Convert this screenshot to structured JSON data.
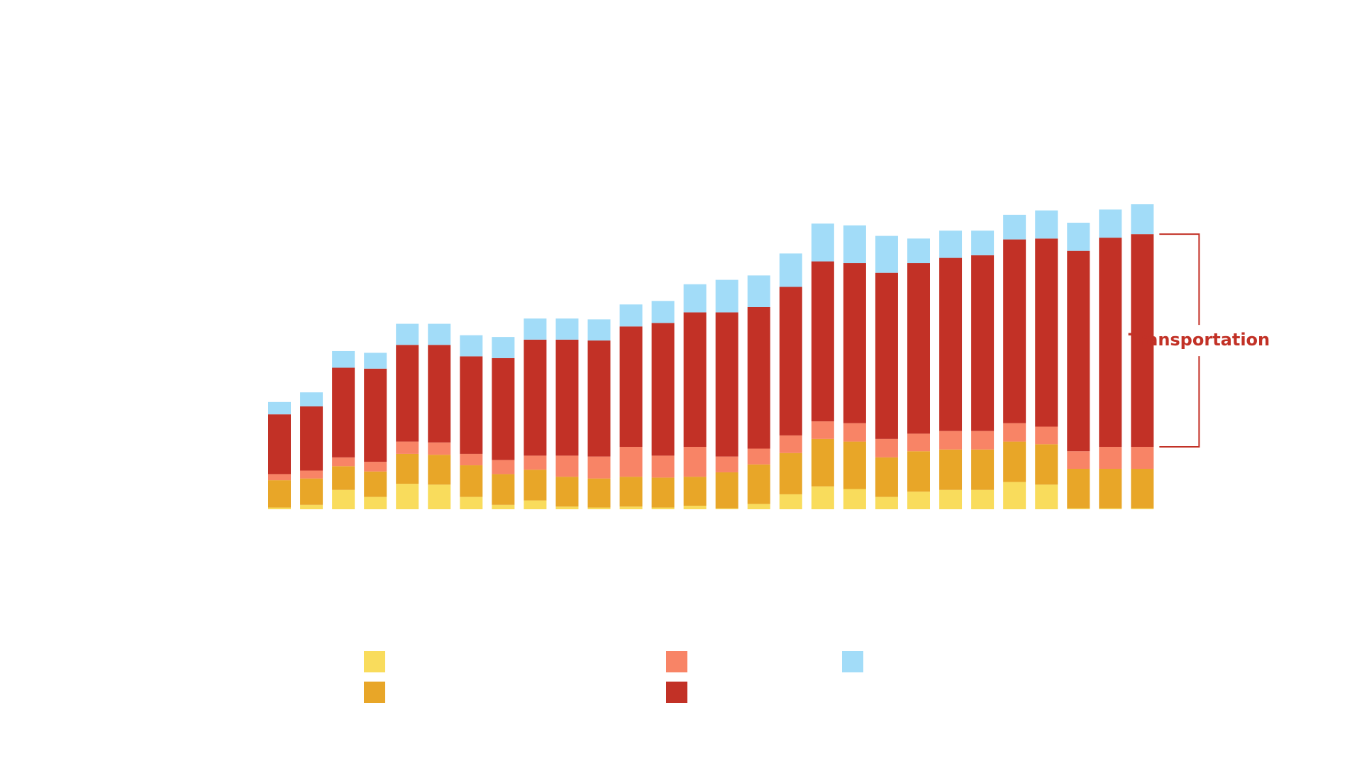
{
  "chart_data": {
    "type": "stacked_bar",
    "annotation": "Transportation",
    "categories": [
      null,
      null,
      null,
      null,
      null,
      null,
      null,
      null,
      null,
      null,
      null,
      null,
      null,
      null,
      null,
      null,
      null,
      null,
      null,
      null,
      null,
      null,
      null,
      null,
      null,
      null,
      null,
      null
    ],
    "series": [
      {
        "color": "#f9dc5c",
        "values": [
          2,
          5,
          22,
          14,
          29,
          28,
          14,
          5,
          10,
          3,
          2,
          3,
          2,
          4,
          1,
          6,
          17,
          26,
          23,
          14,
          20,
          22,
          22,
          31,
          28,
          1,
          1,
          1
        ]
      },
      {
        "color": "#e8a628",
        "values": [
          31,
          30,
          27,
          29,
          34,
          34,
          36,
          35,
          35,
          34,
          33,
          34,
          34,
          33,
          41,
          45,
          47,
          54,
          54,
          45,
          46,
          46,
          46,
          46,
          46,
          45,
          45,
          45
        ]
      },
      {
        "color": "#f88466",
        "values": [
          7,
          9,
          10,
          11,
          14,
          14,
          13,
          16,
          16,
          24,
          25,
          34,
          25,
          34,
          18,
          18,
          20,
          20,
          21,
          21,
          20,
          21,
          21,
          21,
          20,
          20,
          25,
          25
        ]
      },
      {
        "color": "#c23126",
        "values": [
          68,
          73,
          102,
          106,
          110,
          111,
          111,
          116,
          132,
          132,
          132,
          137,
          151,
          153,
          164,
          161,
          169,
          182,
          182,
          189,
          194,
          197,
          200,
          209,
          214,
          228,
          238,
          242
        ]
      },
      {
        "color": "#a2dcf8",
        "values": [
          14,
          16,
          19,
          18,
          24,
          24,
          24,
          24,
          24,
          24,
          24,
          25,
          25,
          32,
          37,
          36,
          38,
          43,
          43,
          42,
          28,
          31,
          28,
          28,
          32,
          32,
          32,
          34
        ]
      }
    ]
  }
}
